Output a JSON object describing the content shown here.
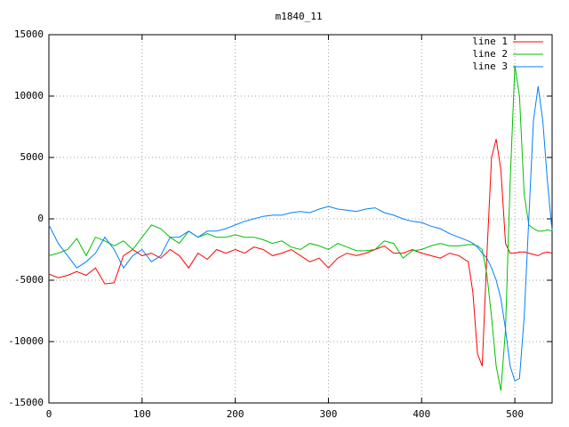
{
  "chart_data": {
    "type": "line",
    "title": "m1840_11",
    "x": [
      0,
      10,
      20,
      30,
      40,
      50,
      60,
      70,
      80,
      90,
      100,
      110,
      120,
      130,
      140,
      150,
      160,
      170,
      180,
      190,
      200,
      210,
      220,
      230,
      240,
      250,
      260,
      270,
      280,
      290,
      300,
      310,
      320,
      330,
      340,
      350,
      360,
      370,
      380,
      390,
      400,
      410,
      420,
      430,
      440,
      450,
      455,
      460,
      465,
      470,
      475,
      480,
      485,
      490,
      495,
      500,
      505,
      510,
      515,
      520,
      525,
      530,
      535,
      540
    ],
    "series": [
      {
        "name": "line 1",
        "color": "#ff0000",
        "values": [
          -4500,
          -4800,
          -4600,
          -4300,
          -4600,
          -4000,
          -5300,
          -5200,
          -3000,
          -2500,
          -3000,
          -2800,
          -3200,
          -2500,
          -3000,
          -4000,
          -2800,
          -3300,
          -2500,
          -2800,
          -2500,
          -2800,
          -2300,
          -2500,
          -3000,
          -2800,
          -2500,
          -3000,
          -3500,
          -3200,
          -4000,
          -3200,
          -2800,
          -3000,
          -2800,
          -2500,
          -2200,
          -2800,
          -2800,
          -2500,
          -2800,
          -3000,
          -3200,
          -2800,
          -3000,
          -3500,
          -6000,
          -11000,
          -12000,
          -3000,
          5000,
          6500,
          4000,
          -2000,
          -2800,
          -2800,
          -2700,
          -2700,
          -2800,
          -2900,
          -3000,
          -2800,
          -2700,
          -2800
        ]
      },
      {
        "name": "line 2",
        "color": "#00c000",
        "values": [
          -3000,
          -2800,
          -2500,
          -1600,
          -3000,
          -1500,
          -1800,
          -2200,
          -1800,
          -2500,
          -1500,
          -500,
          -800,
          -1500,
          -2000,
          -1000,
          -1500,
          -1200,
          -1500,
          -1500,
          -1300,
          -1500,
          -1500,
          -1700,
          -2000,
          -1800,
          -2300,
          -2500,
          -2000,
          -2200,
          -2500,
          -2000,
          -2300,
          -2600,
          -2600,
          -2500,
          -1800,
          -2000,
          -3200,
          -2600,
          -2500,
          -2200,
          -2000,
          -2200,
          -2200,
          -2100,
          -2100,
          -2200,
          -2500,
          -4500,
          -8000,
          -12000,
          -14000,
          -9000,
          3000,
          12500,
          10000,
          2000,
          -500,
          -800,
          -1000,
          -1000,
          -900,
          -1000
        ]
      },
      {
        "name": "line 3",
        "color": "#0080ff",
        "values": [
          -500,
          -2000,
          -3000,
          -4000,
          -3500,
          -2800,
          -1500,
          -2500,
          -4000,
          -3000,
          -2500,
          -3500,
          -3000,
          -1500,
          -1500,
          -1000,
          -1500,
          -1000,
          -1000,
          -800,
          -500,
          -200,
          0,
          200,
          300,
          300,
          500,
          600,
          500,
          800,
          1000,
          800,
          700,
          600,
          800,
          900,
          500,
          300,
          0,
          -200,
          -300,
          -600,
          -800,
          -1200,
          -1500,
          -1800,
          -2000,
          -2300,
          -2800,
          -3200,
          -4000,
          -5000,
          -6500,
          -9000,
          -12000,
          -13200,
          -13000,
          -8000,
          0,
          8000,
          10800,
          8000,
          3000,
          -1000
        ]
      }
    ],
    "xlim": [
      0,
      540
    ],
    "ylim": [
      -15000,
      15000
    ],
    "xticks": [
      0,
      100,
      200,
      300,
      400,
      500
    ],
    "yticks": [
      -15000,
      -10000,
      -5000,
      0,
      5000,
      10000,
      15000
    ],
    "grid": true,
    "legend": "top-right"
  }
}
